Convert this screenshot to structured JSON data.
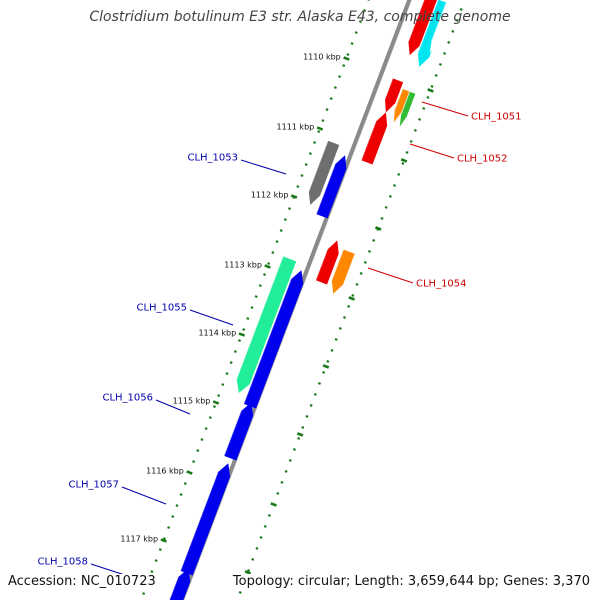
{
  "title": "Clostridium botulinum E3 str. Alaska E43, complete genome",
  "footer": {
    "accession": "Accession: NC_010723",
    "summary": "Topology: circular; Length: 3,659,644 bp; Genes: 3,370"
  },
  "colors": {
    "backbone": "#8a8a8a",
    "tick": "#1a7a1a",
    "label_forward": "#cc0000",
    "label_reverse": "#0000aa",
    "blue": "#0000ee",
    "red": "#ee0000",
    "orange": "#ff8800",
    "green": "#33bb33",
    "cyan": "#00e5ee",
    "gray": "#6e6e6e",
    "spring": "#22ee99"
  },
  "ticks": [
    {
      "label": "1110 kbp"
    },
    {
      "label": "1111 kbp"
    },
    {
      "label": "1112 kbp"
    },
    {
      "label": "1113 kbp"
    },
    {
      "label": "1114 kbp"
    },
    {
      "label": "1115 kbp"
    },
    {
      "label": "1116 kbp"
    },
    {
      "label": "1117 kbp"
    }
  ],
  "gene_labels": [
    {
      "name": "CLH_1051",
      "strand": "forward"
    },
    {
      "name": "CLH_1052",
      "strand": "forward"
    },
    {
      "name": "CLH_1053",
      "strand": "reverse"
    },
    {
      "name": "CLH_1054",
      "strand": "forward"
    },
    {
      "name": "CLH_1055",
      "strand": "reverse"
    },
    {
      "name": "CLH_1056",
      "strand": "reverse"
    },
    {
      "name": "CLH_1057",
      "strand": "reverse"
    },
    {
      "name": "CLH_1058",
      "strand": "reverse"
    }
  ]
}
